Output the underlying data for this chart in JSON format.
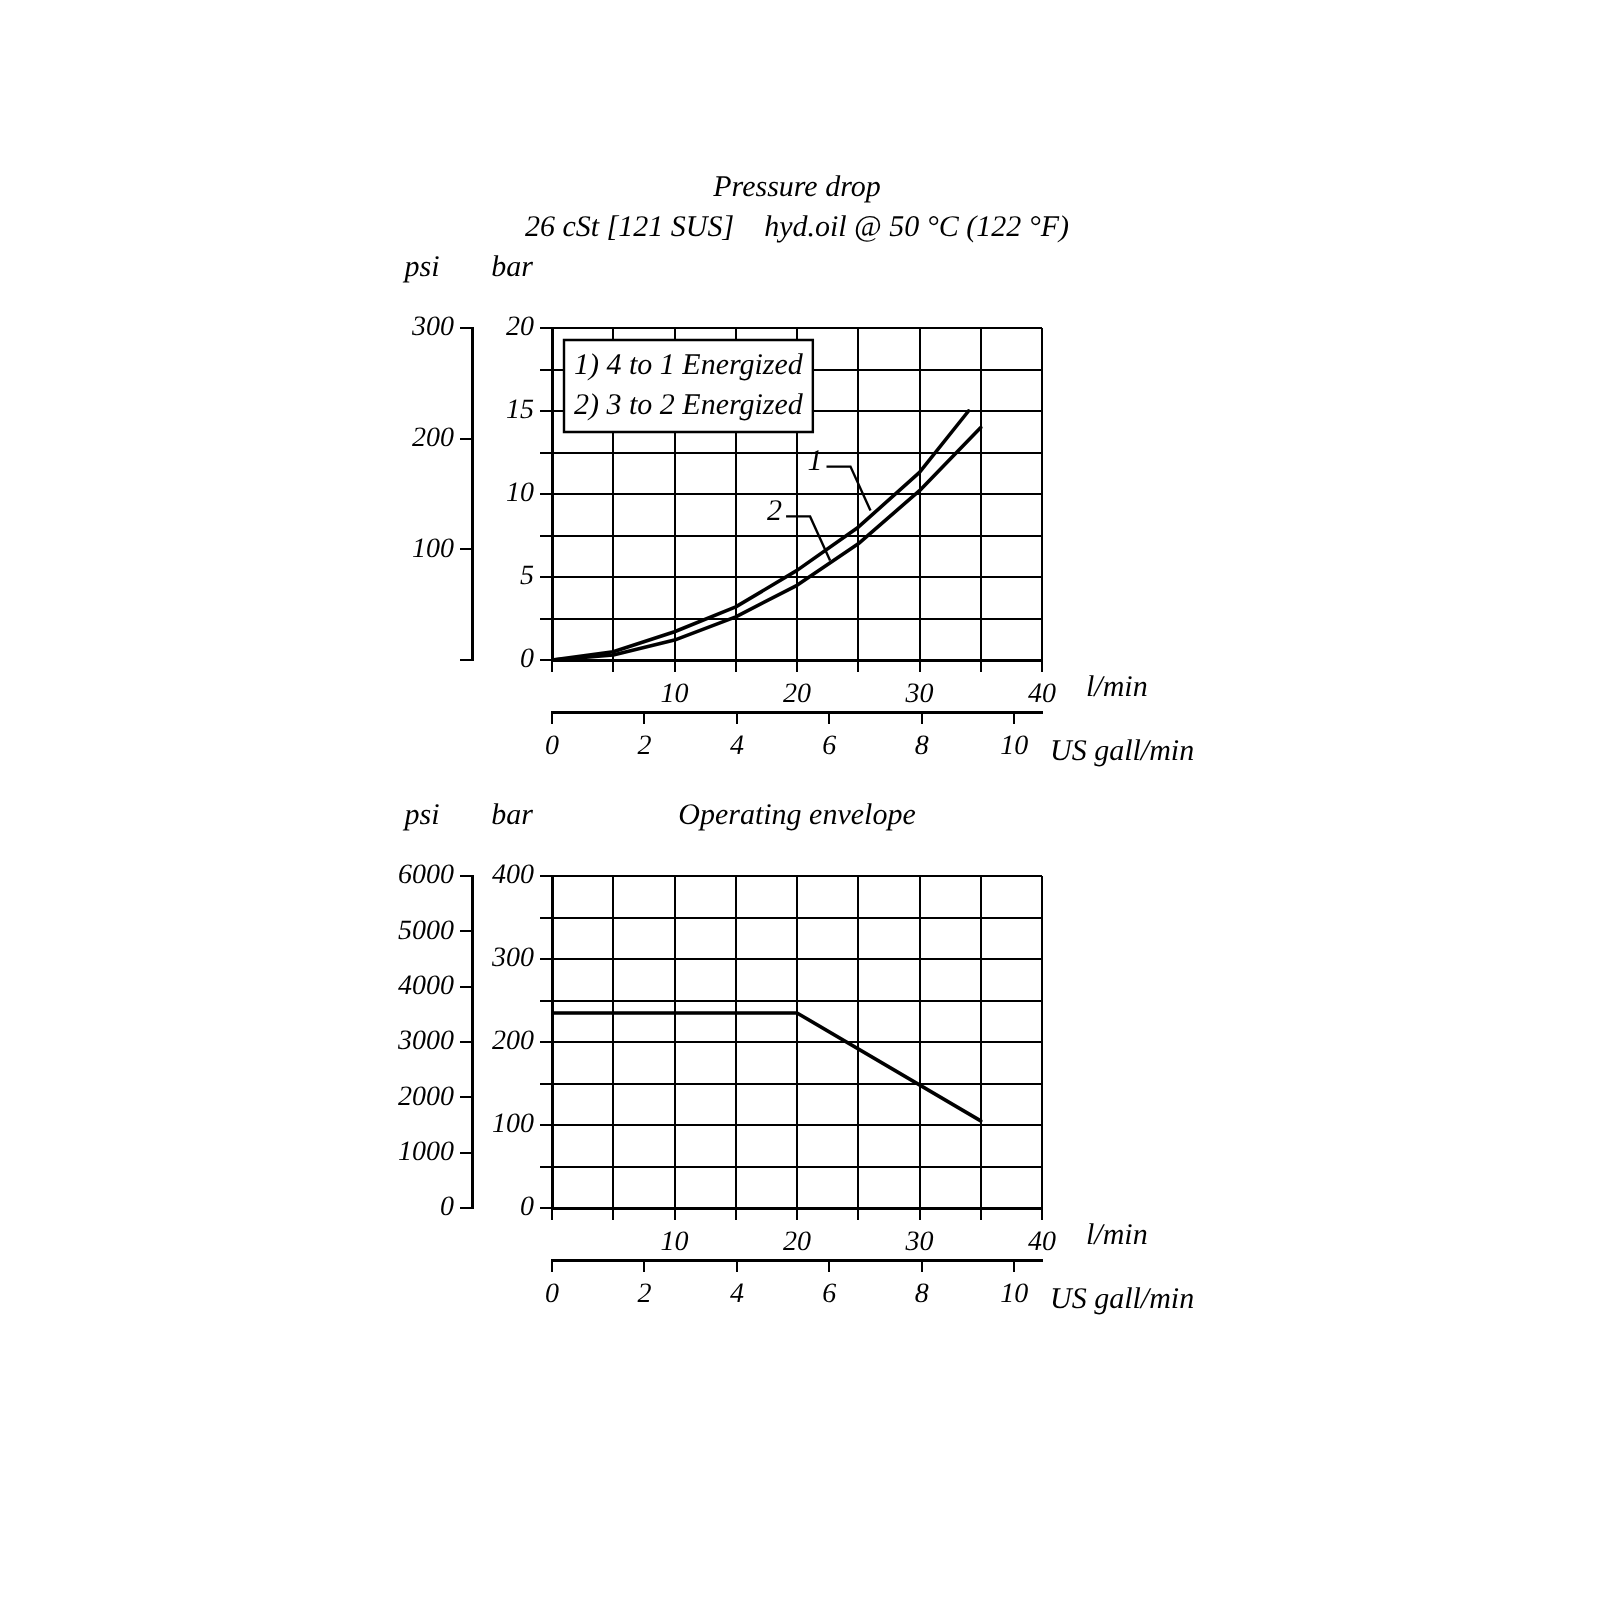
{
  "chart_data": [
    {
      "type": "line",
      "title": "Pressure drop",
      "subtitle": "26 cSt [121 SUS]    hyd.oil @ 50 °C (122 °F)",
      "xlabel": "l/min",
      "ylabel": "bar",
      "y2label": "psi",
      "x2label": "US gall/min",
      "x": [
        0,
        5,
        10,
        15,
        20,
        25,
        30,
        34
      ],
      "series": [
        {
          "color": "#000000",
          "values": [
            0,
            0.5,
            1.7,
            3.2,
            5.4,
            8.0,
            11.3,
            15
          ]
        },
        {
          "color": "#000000",
          "x": [
            0,
            5,
            10,
            15,
            20,
            25,
            30,
            35
          ],
          "values": [
            0,
            0.3,
            1.2,
            2.6,
            4.5,
            7.0,
            10.2,
            14
          ]
        }
      ],
      "annotations": [
        "1) 4 to 1 Energized",
        "2) 3 to 2 Energized",
        {
          "text": "1",
          "x": 26,
          "y": 9
        },
        {
          "text": "2",
          "x": 22.7,
          "y": 6
        }
      ],
      "xlim": [
        0,
        40
      ],
      "xticks": [
        {
          "value": 0,
          "label": null
        },
        {
          "value": 5,
          "label": null
        },
        10,
        {
          "value": 15,
          "label": null
        },
        20,
        {
          "value": 25,
          "label": null
        },
        30,
        {
          "value": 35,
          "label": null
        },
        40
      ],
      "ylim": [
        0,
        20
      ],
      "yticks": [
        0,
        {
          "value": 2.5,
          "label": null
        },
        5,
        {
          "value": 7.5,
          "label": null
        },
        10,
        {
          "value": 12.5,
          "label": null
        },
        15,
        {
          "value": 17.5,
          "label": null
        },
        20
      ],
      "y2lim": [
        0,
        300
      ],
      "y2ticks": [
        {
          "value": 0,
          "label": null
        },
        100,
        200,
        300
      ],
      "x2lim": [
        0,
        10.6
      ],
      "x2ticks": [
        0,
        2,
        4,
        6,
        8,
        10
      ],
      "grid": true,
      "line_style": "solid"
    },
    {
      "type": "line",
      "title": "Operating envelope",
      "xlabel": "l/min",
      "ylabel": "bar",
      "y2label": "psi",
      "x2label": "US gall/min",
      "x": [
        0,
        20,
        35
      ],
      "series": [
        {
          "color": "#000000",
          "values": [
            235,
            235,
            105
          ]
        }
      ],
      "xlim": [
        0,
        40
      ],
      "xticks": [
        {
          "value": 0,
          "label": null
        },
        {
          "value": 5,
          "label": null
        },
        10,
        {
          "value": 15,
          "label": null
        },
        20,
        {
          "value": 25,
          "label": null
        },
        30,
        {
          "value": 35,
          "label": null
        },
        40
      ],
      "ylim": [
        0,
        400
      ],
      "yticks": [
        0,
        {
          "value": 50,
          "label": null
        },
        100,
        {
          "value": 150,
          "label": null
        },
        200,
        {
          "value": 250,
          "label": null
        },
        300,
        {
          "value": 350,
          "label": null
        },
        400
      ],
      "y2lim": [
        0,
        6000
      ],
      "y2ticks": [
        0,
        1000,
        2000,
        3000,
        4000,
        5000,
        6000
      ],
      "x2lim": [
        0,
        10.6
      ],
      "x2ticks": [
        0,
        2,
        4,
        6,
        8,
        10
      ],
      "grid": true,
      "line_style": "solid"
    }
  ]
}
